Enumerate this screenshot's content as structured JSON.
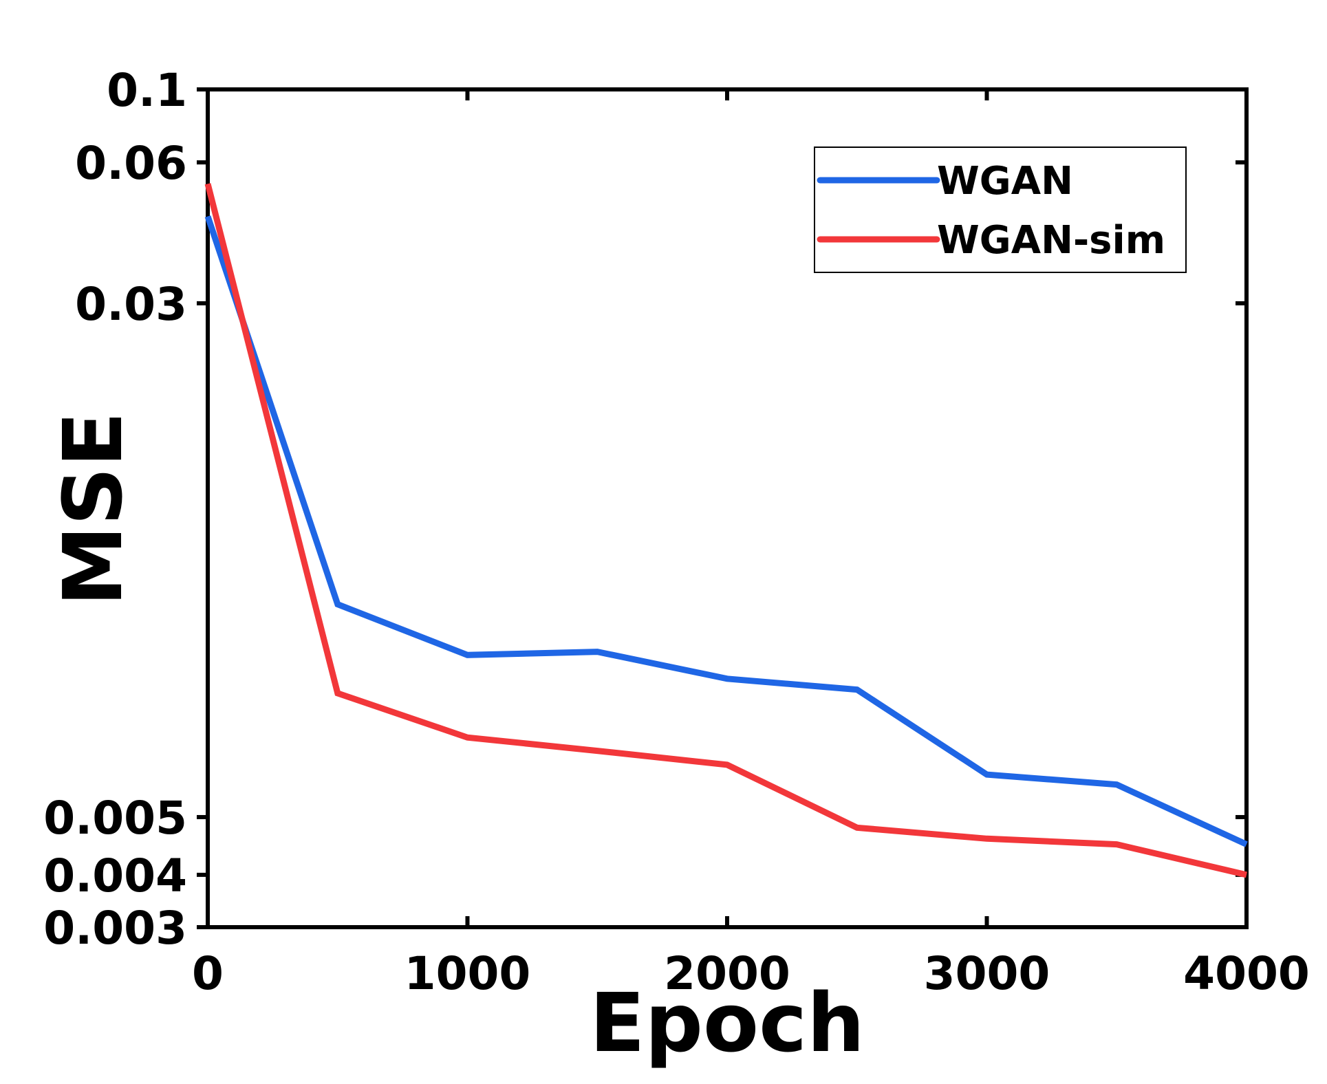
{
  "chart_data": {
    "type": "line",
    "xlabel": "Epoch",
    "ylabel": "MSE",
    "x_scale": "linear",
    "y_scale": "custom-log",
    "xlim": [
      0,
      4000
    ],
    "ylim": [
      0.003,
      0.1
    ],
    "x_ticks": [
      0,
      1000,
      2000,
      3000,
      4000
    ],
    "x_tick_labels": [
      "0",
      "1000",
      "2000",
      "3000",
      "4000"
    ],
    "y_ticks": [
      0.003,
      0.004,
      0.005,
      0.03,
      0.06,
      0.1
    ],
    "y_tick_labels": [
      "0.003",
      "0.004",
      "0.005",
      "0.03",
      "0.06",
      "0.1"
    ],
    "legend_position": "top-right",
    "x": [
      0,
      500,
      1000,
      1500,
      2000,
      2500,
      3000,
      3500,
      4000
    ],
    "series": [
      {
        "name": "WGAN",
        "color": "#1f66e5",
        "values": [
          0.046,
          0.0105,
          0.0088,
          0.0089,
          0.0081,
          0.0078,
          0.0058,
          0.0056,
          0.0045
        ]
      },
      {
        "name": "WGAN-sim",
        "color": "#f2373a",
        "values": [
          0.054,
          0.0077,
          0.0066,
          0.0063,
          0.006,
          0.0048,
          0.0046,
          0.0045,
          0.004
        ]
      }
    ]
  }
}
